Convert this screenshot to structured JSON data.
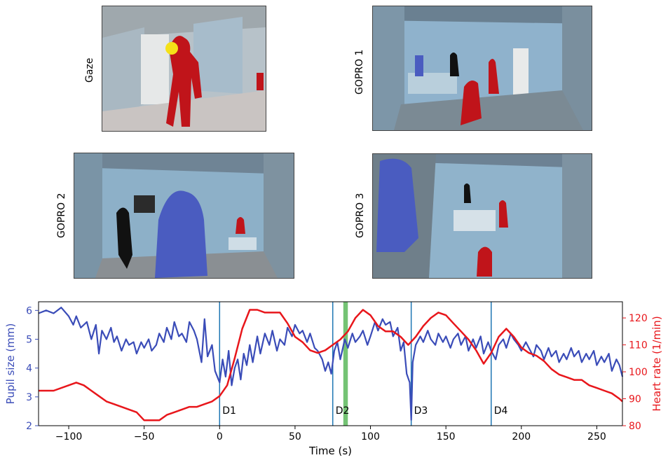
{
  "panels": [
    {
      "label": "Gaze"
    },
    {
      "label": "GOPRO 1"
    },
    {
      "label": "GOPRO 2"
    },
    {
      "label": "GOPRO 3"
    }
  ],
  "colors": {
    "pupil": "#3a4cb8",
    "heart": "#e8161b",
    "marker": "#1f77b4",
    "band": "#5cb85c",
    "red_person": "#c0141a",
    "blue_person": "#4a5cc0",
    "wall": "#8fb2cc"
  },
  "chart_data": {
    "type": "line",
    "xlabel": "Time (s)",
    "ylabel_left": "Pupil size (mm)",
    "ylabel_right": "Heart rate (1/min)",
    "xlim": [
      -120,
      267
    ],
    "ylim_left": [
      2,
      6.3
    ],
    "ylim_right": [
      80,
      126
    ],
    "xticks": [
      -100,
      -50,
      0,
      50,
      100,
      150,
      200,
      250
    ],
    "yticks_left": [
      2,
      3,
      4,
      5,
      6
    ],
    "yticks_right": [
      80,
      90,
      100,
      110,
      120
    ],
    "markers": [
      {
        "x": 0,
        "label": "D1"
      },
      {
        "x": 75,
        "label": "D2"
      },
      {
        "x": 127,
        "label": "D3"
      },
      {
        "x": 180,
        "label": "D4"
      }
    ],
    "highlight_band": [
      82,
      85
    ],
    "series": [
      {
        "name": "Pupil size",
        "axis": "left",
        "x": [
          -120,
          -115,
          -110,
          -105,
          -100,
          -97,
          -95,
          -92,
          -88,
          -85,
          -82,
          -80,
          -78,
          -75,
          -72,
          -70,
          -68,
          -65,
          -62,
          -60,
          -57,
          -55,
          -52,
          -50,
          -47,
          -45,
          -42,
          -40,
          -37,
          -35,
          -32,
          -30,
          -27,
          -25,
          -22,
          -20,
          -17,
          -15,
          -12,
          -10,
          -8,
          -5,
          -3,
          0,
          2,
          4,
          6,
          8,
          10,
          12,
          14,
          16,
          18,
          20,
          22,
          25,
          27,
          30,
          33,
          35,
          38,
          40,
          43,
          45,
          48,
          50,
          53,
          55,
          58,
          60,
          63,
          65,
          68,
          70,
          72,
          74,
          76,
          78,
          80,
          83,
          85,
          88,
          90,
          93,
          95,
          98,
          100,
          103,
          105,
          108,
          110,
          113,
          115,
          118,
          120,
          122,
          124,
          126,
          127,
          128,
          130,
          133,
          135,
          138,
          140,
          143,
          145,
          148,
          150,
          153,
          155,
          158,
          160,
          163,
          165,
          168,
          170,
          173,
          175,
          178,
          180,
          183,
          185,
          188,
          190,
          193,
          195,
          198,
          200,
          203,
          205,
          208,
          210,
          213,
          215,
          218,
          220,
          223,
          225,
          228,
          230,
          233,
          235,
          238,
          240,
          243,
          245,
          248,
          250,
          253,
          255,
          258,
          260,
          263,
          265,
          267
        ],
        "values": [
          5.9,
          6.0,
          5.9,
          6.1,
          5.8,
          5.5,
          5.8,
          5.4,
          5.6,
          5.0,
          5.5,
          4.5,
          5.3,
          5.0,
          5.4,
          4.9,
          5.1,
          4.6,
          5.0,
          4.8,
          4.9,
          4.5,
          4.9,
          4.7,
          5.0,
          4.6,
          4.8,
          5.2,
          4.9,
          5.4,
          5.0,
          5.6,
          5.1,
          5.2,
          4.9,
          5.6,
          5.3,
          5.0,
          4.2,
          5.7,
          4.4,
          4.8,
          3.9,
          3.5,
          4.3,
          3.7,
          4.6,
          3.4,
          4.0,
          4.3,
          3.6,
          4.5,
          4.1,
          4.8,
          4.2,
          5.1,
          4.5,
          5.2,
          4.8,
          5.3,
          4.6,
          5.0,
          4.8,
          5.4,
          5.1,
          5.5,
          5.2,
          5.3,
          4.9,
          5.2,
          4.7,
          4.6,
          4.3,
          3.9,
          4.2,
          3.8,
          4.6,
          4.9,
          4.3,
          5.0,
          4.7,
          5.2,
          4.9,
          5.1,
          5.3,
          4.8,
          5.1,
          5.6,
          5.3,
          5.7,
          5.5,
          5.6,
          5.1,
          5.4,
          4.6,
          4.9,
          3.8,
          3.5,
          2.2,
          4.2,
          4.8,
          5.1,
          4.9,
          5.3,
          5.0,
          4.8,
          5.2,
          4.9,
          5.1,
          4.7,
          5.0,
          5.2,
          4.8,
          5.1,
          4.6,
          5.0,
          4.7,
          5.1,
          4.5,
          4.9,
          4.6,
          4.3,
          4.8,
          5.0,
          4.7,
          5.2,
          5.0,
          4.8,
          4.6,
          4.9,
          4.7,
          4.4,
          4.8,
          4.6,
          4.3,
          4.7,
          4.4,
          4.6,
          4.2,
          4.5,
          4.3,
          4.7,
          4.4,
          4.6,
          4.2,
          4.5,
          4.3,
          4.6,
          4.1,
          4.4,
          4.2,
          4.5,
          3.9,
          4.3,
          4.1,
          3.7
        ]
      },
      {
        "name": "Heart rate",
        "axis": "right",
        "x": [
          -120,
          -110,
          -100,
          -95,
          -90,
          -85,
          -80,
          -75,
          -70,
          -65,
          -60,
          -55,
          -50,
          -45,
          -40,
          -35,
          -30,
          -25,
          -20,
          -15,
          -10,
          -5,
          0,
          5,
          10,
          15,
          20,
          25,
          30,
          35,
          40,
          45,
          50,
          55,
          60,
          65,
          70,
          75,
          80,
          85,
          90,
          95,
          100,
          105,
          110,
          115,
          120,
          125,
          130,
          135,
          140,
          145,
          150,
          155,
          160,
          165,
          170,
          175,
          180,
          185,
          190,
          195,
          200,
          205,
          210,
          215,
          220,
          225,
          230,
          235,
          240,
          245,
          250,
          255,
          260,
          265,
          267
        ],
        "values": [
          93,
          93,
          95,
          96,
          95,
          93,
          91,
          89,
          88,
          87,
          86,
          85,
          82,
          82,
          82,
          84,
          85,
          86,
          87,
          87,
          88,
          89,
          91,
          95,
          105,
          116,
          123,
          123,
          122,
          122,
          122,
          118,
          113,
          111,
          108,
          107,
          108,
          110,
          112,
          115,
          120,
          123,
          121,
          117,
          115,
          115,
          113,
          110,
          113,
          117,
          120,
          122,
          121,
          118,
          115,
          112,
          108,
          103,
          107,
          113,
          116,
          113,
          109,
          107,
          106,
          104,
          101,
          99,
          98,
          97,
          97,
          95,
          94,
          93,
          92,
          90,
          89
        ]
      }
    ]
  }
}
